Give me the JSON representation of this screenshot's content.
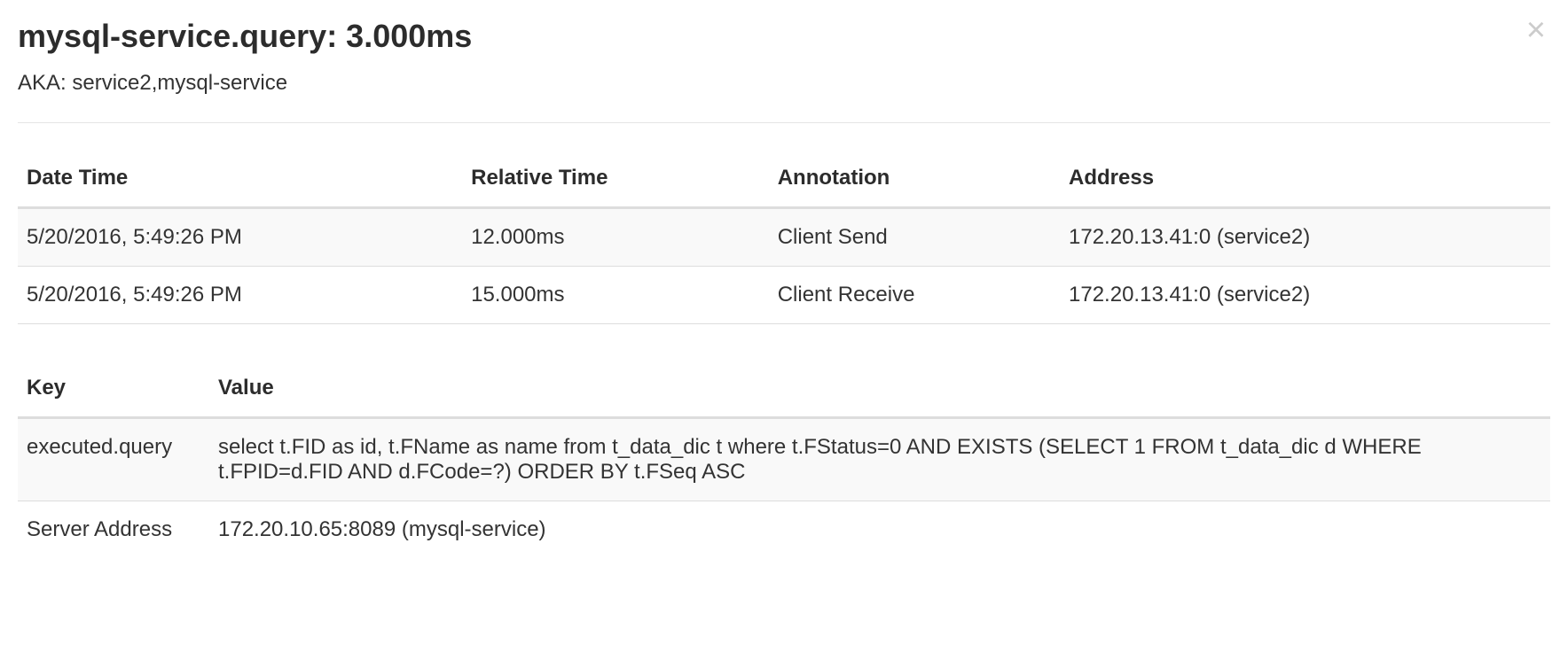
{
  "header": {
    "title": "mysql-service.query: 3.000ms",
    "subtitle": "AKA: service2,mysql-service"
  },
  "annotations_table": {
    "headers": [
      "Date Time",
      "Relative Time",
      "Annotation",
      "Address"
    ],
    "rows": [
      [
        "5/20/2016, 5:49:26 PM",
        "12.000ms",
        "Client Send",
        "172.20.13.41:0 (service2)"
      ],
      [
        "5/20/2016, 5:49:26 PM",
        "15.000ms",
        "Client Receive",
        "172.20.13.41:0 (service2)"
      ]
    ]
  },
  "kv_table": {
    "headers": [
      "Key",
      "Value"
    ],
    "rows": [
      [
        "executed.query",
        "select t.FID as id, t.FName as name from t_data_dic t where t.FStatus=0 AND EXISTS (SELECT 1 FROM t_data_dic d WHERE t.FPID=d.FID AND d.FCode=?) ORDER BY t.FSeq ASC"
      ],
      [
        "Server Address",
        "172.20.10.65:8089 (mysql-service)"
      ]
    ]
  },
  "colors": {
    "text": "#333333",
    "heading": "#2c2c2c",
    "border_heavy": "#dddddd",
    "border_light": "#e5e5e5",
    "row_stripe": "#f9f9f9",
    "close_icon": "#cccccc",
    "background": "#ffffff"
  }
}
